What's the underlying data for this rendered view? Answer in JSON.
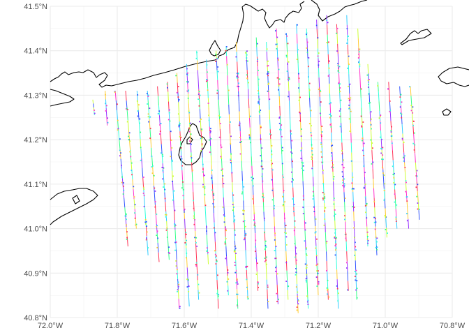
{
  "chart_data": {
    "type": "map",
    "x_axis": {
      "ticks": [
        -72.0,
        -71.8,
        -71.6,
        -71.4,
        -71.2,
        -71.0,
        -70.8
      ],
      "tick_labels": [
        "72.0°W",
        "71.8°W",
        "71.6°W",
        "71.4°W",
        "71.2°W",
        "71.0°W",
        "70.8°W"
      ],
      "range": [
        -72.0,
        -70.8
      ]
    },
    "y_axis": {
      "ticks": [
        40.8,
        40.9,
        41.0,
        41.1,
        41.2,
        41.3,
        41.4,
        41.5
      ],
      "tick_labels": [
        "40.8°N",
        "40.9°N",
        "41.0°N",
        "41.1°N",
        "41.2°N",
        "41.3°N",
        "41.4°N",
        "41.5°N"
      ],
      "range": [
        40.8,
        41.5
      ]
    },
    "grid": true,
    "series_colors": [
      "#ff3355",
      "#ff33cc",
      "#3355ff",
      "#33ccff",
      "#33ff88",
      "#ccff33",
      "#ffcc33",
      "#9933ff",
      "#33ffdd"
    ],
    "transects": [
      {
        "top": [
          -71.873,
          41.29
        ],
        "bottom": [
          -71.868,
          41.255
        ]
      },
      {
        "top": [
          -71.836,
          41.31
        ],
        "bottom": [
          -71.83,
          41.232
        ]
      },
      {
        "top": [
          -71.806,
          41.31
        ],
        "bottom": [
          -71.768,
          40.96
        ]
      },
      {
        "top": [
          -71.775,
          41.31
        ],
        "bottom": [
          -71.743,
          41.0
        ]
      },
      {
        "top": [
          -71.741,
          41.31
        ],
        "bottom": [
          -71.708,
          40.94
        ]
      },
      {
        "top": [
          -71.71,
          41.31
        ],
        "bottom": [
          -71.675,
          40.925
        ]
      },
      {
        "top": [
          -71.68,
          41.32
        ],
        "bottom": [
          -71.645,
          40.93
        ]
      },
      {
        "top": [
          -71.65,
          41.33
        ],
        "bottom": [
          -71.615,
          40.82
        ]
      },
      {
        "top": [
          -71.622,
          41.35
        ],
        "bottom": [
          -71.585,
          40.825
        ]
      },
      {
        "top": [
          -71.593,
          41.37
        ],
        "bottom": [
          -71.557,
          40.84
        ]
      },
      {
        "top": [
          -71.563,
          41.4
        ],
        "bottom": [
          -71.528,
          40.92
        ]
      },
      {
        "top": [
          -71.534,
          41.38
        ],
        "bottom": [
          -71.498,
          40.82
        ]
      },
      {
        "top": [
          -71.505,
          41.4
        ],
        "bottom": [
          -71.468,
          40.85
        ]
      },
      {
        "top": [
          -71.475,
          41.41
        ],
        "bottom": [
          -71.44,
          40.82
        ]
      },
      {
        "top": [
          -71.445,
          41.42
        ],
        "bottom": [
          -71.41,
          40.84
        ]
      },
      {
        "top": [
          -71.415,
          41.4
        ],
        "bottom": [
          -71.38,
          40.86
        ]
      },
      {
        "top": [
          -71.385,
          41.43
        ],
        "bottom": [
          -71.35,
          40.82
        ]
      },
      {
        "top": [
          -71.355,
          41.42
        ],
        "bottom": [
          -71.32,
          40.83
        ]
      },
      {
        "top": [
          -71.325,
          41.45
        ],
        "bottom": [
          -71.29,
          40.84
        ]
      },
      {
        "top": [
          -71.295,
          41.44
        ],
        "bottom": [
          -71.26,
          40.81
        ]
      },
      {
        "top": [
          -71.265,
          41.46
        ],
        "bottom": [
          -71.23,
          40.82
        ]
      },
      {
        "top": [
          -71.235,
          41.45
        ],
        "bottom": [
          -71.2,
          40.85
        ]
      },
      {
        "top": [
          -71.205,
          41.47
        ],
        "bottom": [
          -71.17,
          40.84
        ]
      },
      {
        "top": [
          -71.175,
          41.48
        ],
        "bottom": [
          -71.14,
          40.82
        ]
      },
      {
        "top": [
          -71.145,
          41.46
        ],
        "bottom": [
          -71.11,
          40.86
        ]
      },
      {
        "top": [
          -71.115,
          41.48
        ],
        "bottom": [
          -71.085,
          40.84
        ]
      },
      {
        "top": [
          -71.082,
          41.45
        ],
        "bottom": [
          -71.052,
          40.96
        ]
      },
      {
        "top": [
          -71.052,
          41.37
        ],
        "bottom": [
          -71.025,
          40.94
        ]
      },
      {
        "top": [
          -71.022,
          41.33
        ],
        "bottom": [
          -70.995,
          40.98
        ]
      },
      {
        "top": [
          -70.99,
          41.33
        ],
        "bottom": [
          -70.965,
          41.0
        ]
      },
      {
        "top": [
          -70.957,
          41.32
        ],
        "bottom": [
          -70.93,
          41.0
        ]
      },
      {
        "top": [
          -70.925,
          41.32
        ],
        "bottom": [
          -70.898,
          41.02
        ]
      }
    ]
  }
}
